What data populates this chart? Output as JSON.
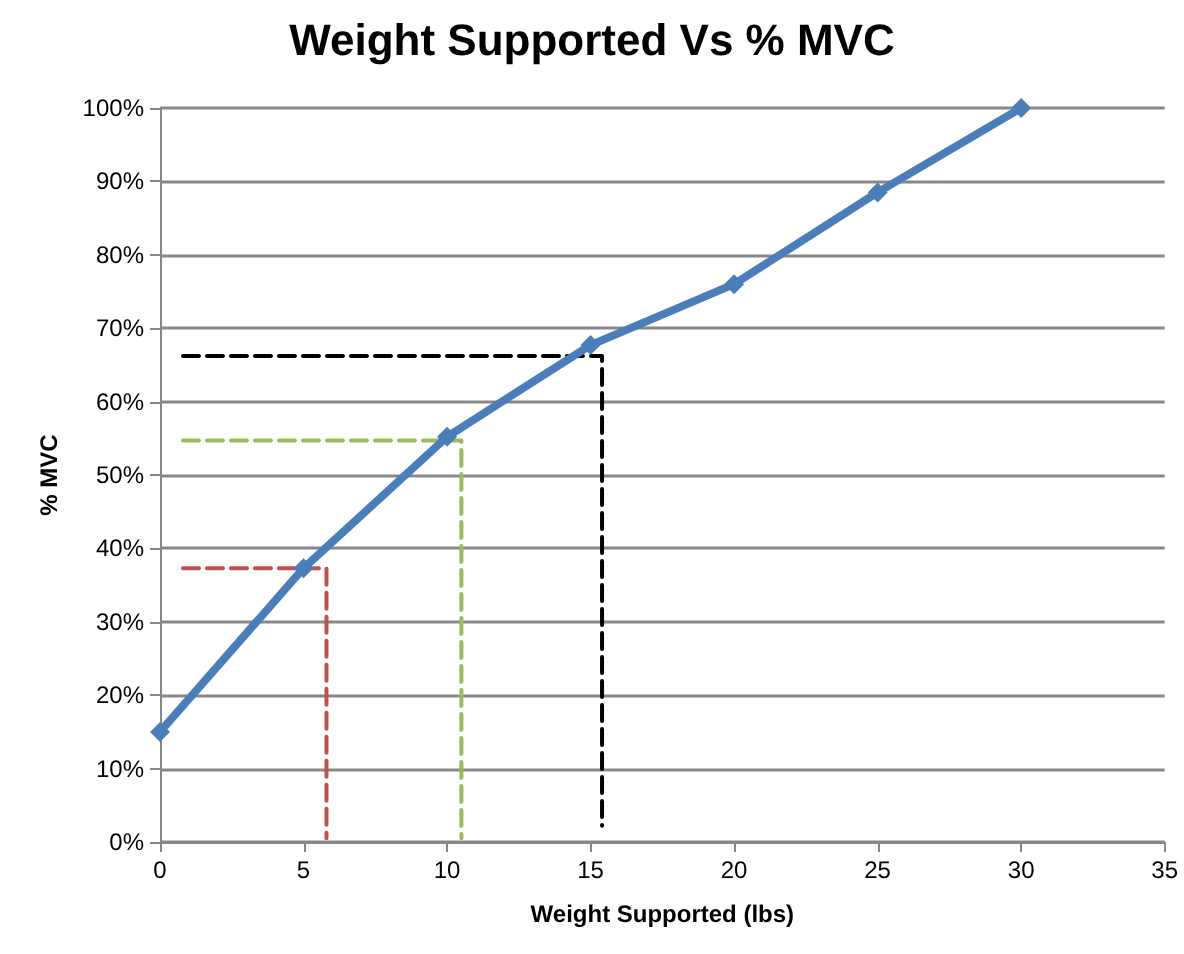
{
  "chart_data": {
    "type": "line",
    "title": "Weight Supported Vs % MVC",
    "xlabel": "Weight Supported (lbs)",
    "ylabel": "% MVC",
    "xlim": [
      0,
      35
    ],
    "xticks": [
      0,
      5,
      10,
      15,
      20,
      25,
      30,
      35
    ],
    "ylim": [
      0,
      100
    ],
    "yticks": [
      {
        "value": 0,
        "label": "0%"
      },
      {
        "value": 10,
        "label": "10%"
      },
      {
        "value": 20,
        "label": "20%"
      },
      {
        "value": 30,
        "label": "30%"
      },
      {
        "value": 40,
        "label": "40%"
      },
      {
        "value": 50,
        "label": "50%"
      },
      {
        "value": 60,
        "label": "60%"
      },
      {
        "value": 70,
        "label": "70%"
      },
      {
        "value": 80,
        "label": "80%"
      },
      {
        "value": 90,
        "label": "90%"
      },
      {
        "value": 100,
        "label": "100%"
      }
    ],
    "grid": "y",
    "series": [
      {
        "color": "#4a7ebb",
        "x": [
          0,
          5,
          10,
          15,
          20,
          25,
          30
        ],
        "values": [
          15,
          37.3,
          55.2,
          67.7,
          76,
          88.5,
          100
        ],
        "marker": "diamond",
        "line_style": "solid"
      },
      {
        "color": "#c0504d",
        "x": [
          0.8,
          5.8,
          5.8
        ],
        "values": [
          37.3,
          37.3,
          0.5
        ],
        "marker": "none",
        "line_style": "dashed"
      },
      {
        "color": "#9bbb59",
        "x": [
          0.8,
          10.5,
          10.5
        ],
        "values": [
          54.7,
          54.7,
          0.5
        ],
        "marker": "none",
        "line_style": "dashed"
      },
      {
        "color": "#000000",
        "x": [
          0.8,
          15.4,
          15.4
        ],
        "values": [
          66.2,
          66.2,
          2.2
        ],
        "marker": "none",
        "line_style": "dashed"
      }
    ]
  }
}
